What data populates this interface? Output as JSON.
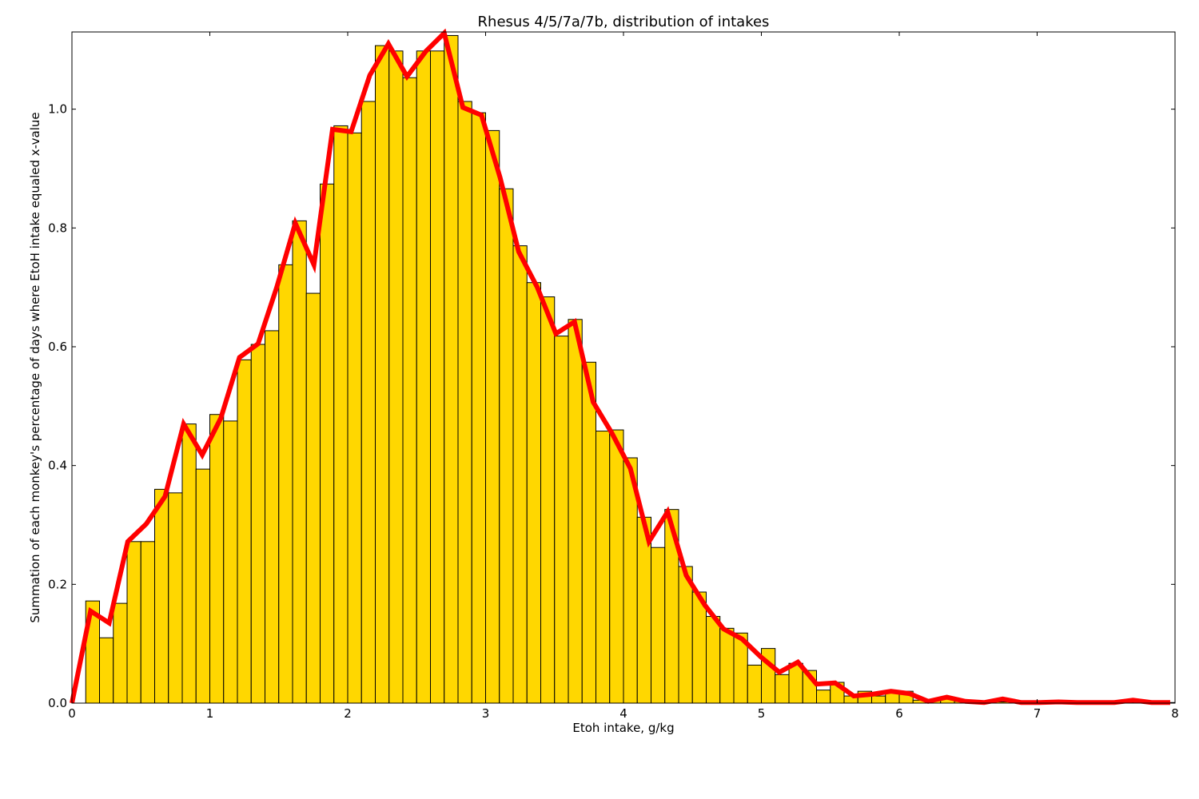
{
  "chart_data": {
    "type": "bar",
    "title": "Rhesus 4/5/7a/7b, distribution of intakes",
    "xlabel": "Etoh intake, g/kg",
    "ylabel": "Summation of each monkey's percentage of days where EtoH intake equaled x-value",
    "xlim": [
      0,
      8
    ],
    "ylim": [
      0,
      1.13
    ],
    "xticks": [
      "0",
      "1",
      "2",
      "3",
      "4",
      "5",
      "6",
      "7",
      "8"
    ],
    "yticks": [
      "0.0",
      "0.2",
      "0.4",
      "0.6",
      "0.8",
      "1.0"
    ],
    "grid": false,
    "bin_width": 0.1,
    "bar_color": "#ffd700",
    "line_color": "#ff0000",
    "series": [
      {
        "kind": "histogram",
        "bin_starts": [
          0.0,
          0.1,
          0.2,
          0.3,
          0.4,
          0.5,
          0.6,
          0.7,
          0.8,
          0.9,
          1.0,
          1.1,
          1.2,
          1.3,
          1.4,
          1.5,
          1.6,
          1.7,
          1.8,
          1.9,
          2.0,
          2.1,
          2.2,
          2.3,
          2.4,
          2.5,
          2.6,
          2.7,
          2.8,
          2.9,
          3.0,
          3.1,
          3.2,
          3.3,
          3.4,
          3.5,
          3.6,
          3.7,
          3.8,
          3.9,
          4.0,
          4.1,
          4.2,
          4.3,
          4.4,
          4.5,
          4.6,
          4.7,
          4.8,
          4.9,
          5.0,
          5.1,
          5.2,
          5.3,
          5.4,
          5.5,
          5.6,
          5.7,
          5.8,
          5.9,
          6.0,
          6.1,
          6.2,
          6.3,
          6.4,
          6.5,
          6.6,
          6.7,
          6.8,
          6.9,
          7.0,
          7.1,
          7.2,
          7.3,
          7.4,
          7.5,
          7.6,
          7.7,
          7.8,
          7.9
        ],
        "values": [
          0.0,
          0.172,
          0.11,
          0.168,
          0.272,
          0.272,
          0.36,
          0.354,
          0.47,
          0.394,
          0.486,
          0.475,
          0.578,
          0.604,
          0.627,
          0.738,
          0.812,
          0.69,
          0.874,
          0.972,
          0.96,
          1.013,
          1.107,
          1.098,
          1.053,
          1.098,
          1.098,
          1.124,
          1.013,
          0.994,
          0.964,
          0.866,
          0.77,
          0.708,
          0.684,
          0.618,
          0.646,
          0.574,
          0.458,
          0.46,
          0.413,
          0.313,
          0.262,
          0.326,
          0.23,
          0.187,
          0.146,
          0.126,
          0.118,
          0.064,
          0.092,
          0.048,
          0.067,
          0.055,
          0.022,
          0.035,
          0.012,
          0.02,
          0.012,
          0.018,
          0.02,
          0.005,
          0.005,
          0.01,
          0.003,
          0.002,
          0.002,
          0.002,
          0.001,
          0.001,
          0.001,
          0.001,
          0.001,
          0.001,
          0.001,
          0.001,
          0.001,
          0.001,
          0.001,
          0.001
        ]
      },
      {
        "kind": "line",
        "x": [
          0.0,
          0.135,
          0.27,
          0.405,
          0.54,
          0.675,
          0.81,
          0.945,
          1.08,
          1.215,
          1.35,
          1.485,
          1.62,
          1.755,
          1.89,
          2.025,
          2.16,
          2.295,
          2.43,
          2.565,
          2.7,
          2.835,
          2.97,
          3.105,
          3.24,
          3.375,
          3.51,
          3.645,
          3.78,
          3.915,
          4.05,
          4.185,
          4.32,
          4.455,
          4.59,
          4.725,
          4.86,
          4.995,
          5.13,
          5.265,
          5.4,
          5.535,
          5.67,
          5.805,
          5.94,
          6.075,
          6.21,
          6.345,
          6.48,
          6.615,
          6.75,
          6.885,
          7.02,
          7.155,
          7.29,
          7.425,
          7.56,
          7.695,
          7.83,
          7.965
        ],
        "values": [
          0.0,
          0.155,
          0.135,
          0.272,
          0.302,
          0.348,
          0.47,
          0.418,
          0.48,
          0.582,
          0.605,
          0.7,
          0.808,
          0.738,
          0.966,
          0.962,
          1.057,
          1.11,
          1.055,
          1.097,
          1.128,
          1.003,
          0.99,
          0.885,
          0.76,
          0.7,
          0.622,
          0.642,
          0.507,
          0.455,
          0.395,
          0.272,
          0.322,
          0.215,
          0.165,
          0.125,
          0.108,
          0.078,
          0.052,
          0.069,
          0.032,
          0.034,
          0.012,
          0.015,
          0.02,
          0.016,
          0.003,
          0.01,
          0.003,
          0.001,
          0.007,
          0.001,
          0.001,
          0.002,
          0.001,
          0.001,
          0.001,
          0.005,
          0.001,
          0.001
        ]
      }
    ]
  }
}
